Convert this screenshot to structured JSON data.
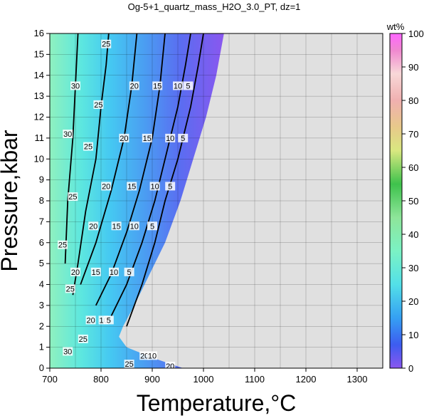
{
  "chart_data": {
    "type": "heatmap",
    "title": "Og-5+1_quartz_mass_H2O_3.0_PT, dz=1",
    "xlabel": "Temperature,°C",
    "ylabel": "Pressure,kbar",
    "xlim": [
      700,
      1350
    ],
    "ylim": [
      0,
      16
    ],
    "x_ticks": [
      "700",
      "800",
      "900",
      "1000",
      "1100",
      "1200",
      "1300"
    ],
    "y_ticks": [
      "0",
      "1",
      "2",
      "3",
      "4",
      "5",
      "6",
      "7",
      "8",
      "9",
      "10",
      "11",
      "12",
      "13",
      "14",
      "15",
      "16"
    ],
    "grid": true,
    "no_data_color": "#e0e0e0",
    "colorbar": {
      "label": "wt%",
      "range": [
        0,
        100
      ],
      "ticks": [
        "0",
        "10",
        "20",
        "30",
        "40",
        "50",
        "60",
        "70",
        "80",
        "90",
        "100"
      ]
    },
    "filled_region_right_edge": [
      {
        "p": 0,
        "t": 960
      },
      {
        "p": 0.5,
        "t": 900
      },
      {
        "p": 1,
        "t": 850
      },
      {
        "p": 1.5,
        "t": 835
      },
      {
        "p": 2,
        "t": 843
      },
      {
        "p": 3,
        "t": 865
      },
      {
        "p": 4,
        "t": 885
      },
      {
        "p": 5,
        "t": 905
      },
      {
        "p": 6,
        "t": 925
      },
      {
        "p": 8,
        "t": 955
      },
      {
        "p": 10,
        "t": 980
      },
      {
        "p": 12,
        "t": 1005
      },
      {
        "p": 14,
        "t": 1025
      },
      {
        "p": 16,
        "t": 1040
      }
    ],
    "contours": [
      {
        "level": 5,
        "points": [
          [
            850,
            2.0
          ],
          [
            880,
            4.0
          ],
          [
            905,
            6.0
          ],
          [
            925,
            8.0
          ],
          [
            950,
            10.0
          ],
          [
            975,
            12.5
          ],
          [
            990,
            14.5
          ],
          [
            1000,
            16.0
          ]
        ]
      },
      {
        "level": 10,
        "points": [
          [
            820,
            2.5
          ],
          [
            850,
            4.0
          ],
          [
            880,
            6.0
          ],
          [
            905,
            8.0
          ],
          [
            925,
            10.0
          ],
          [
            950,
            12.5
          ],
          [
            965,
            14.5
          ],
          [
            975,
            16.0
          ]
        ]
      },
      {
        "level": 15,
        "points": [
          [
            790,
            3.0
          ],
          [
            820,
            4.5
          ],
          [
            850,
            6.5
          ],
          [
            875,
            8.5
          ],
          [
            900,
            11.0
          ],
          [
            915,
            13.5
          ],
          [
            925,
            16.0
          ]
        ]
      },
      {
        "level": 20,
        "points": [
          [
            760,
            4.0
          ],
          [
            790,
            6.0
          ],
          [
            820,
            8.5
          ],
          [
            845,
            11.0
          ],
          [
            860,
            13.5
          ],
          [
            870,
            16.0
          ]
        ]
      },
      {
        "level": 25,
        "points": [
          [
            745,
            3.5
          ],
          [
            755,
            5.0
          ],
          [
            770,
            7.5
          ],
          [
            790,
            10.0
          ],
          [
            800,
            12.5
          ],
          [
            810,
            14.5
          ],
          [
            815,
            16.0
          ]
        ]
      },
      {
        "level": 30,
        "points": [
          [
            730,
            5.0
          ],
          [
            735,
            8.0
          ],
          [
            745,
            11.0
          ],
          [
            750,
            13.5
          ],
          [
            755,
            16.0
          ]
        ]
      }
    ],
    "contour_labels": [
      {
        "level": "25",
        "t": 810,
        "p": 15.5
      },
      {
        "level": "20",
        "t": 865,
        "p": 13.5
      },
      {
        "level": "15",
        "t": 910,
        "p": 13.5
      },
      {
        "level": "10",
        "t": 950,
        "p": 13.5
      },
      {
        "level": "5",
        "t": 970,
        "p": 13.5
      },
      {
        "level": "30",
        "t": 750,
        "p": 13.5
      },
      {
        "level": "25",
        "t": 795,
        "p": 12.6
      },
      {
        "level": "20",
        "t": 845,
        "p": 11.0
      },
      {
        "level": "15",
        "t": 890,
        "p": 11.0
      },
      {
        "level": "10",
        "t": 935,
        "p": 11.0
      },
      {
        "level": "5",
        "t": 960,
        "p": 11.0
      },
      {
        "level": "30",
        "t": 735,
        "p": 11.2
      },
      {
        "level": "25",
        "t": 775,
        "p": 10.6
      },
      {
        "level": "20",
        "t": 810,
        "p": 8.7
      },
      {
        "level": "15",
        "t": 860,
        "p": 8.7
      },
      {
        "level": "10",
        "t": 905,
        "p": 8.7
      },
      {
        "level": "5",
        "t": 935,
        "p": 8.7
      },
      {
        "level": "25",
        "t": 745,
        "p": 8.2
      },
      {
        "level": "20",
        "t": 785,
        "p": 6.8
      },
      {
        "level": "15",
        "t": 830,
        "p": 6.8
      },
      {
        "level": "10",
        "t": 865,
        "p": 6.8
      },
      {
        "level": "5",
        "t": 900,
        "p": 6.8
      },
      {
        "level": "25",
        "t": 725,
        "p": 5.9
      },
      {
        "level": "20",
        "t": 750,
        "p": 4.6
      },
      {
        "level": "15",
        "t": 790,
        "p": 4.6
      },
      {
        "level": "10",
        "t": 825,
        "p": 4.6
      },
      {
        "level": "5",
        "t": 855,
        "p": 4.6
      },
      {
        "level": "25",
        "t": 740,
        "p": 3.8
      },
      {
        "level": "25",
        "t": 765,
        "p": 1.4
      },
      {
        "level": "20",
        "t": 780,
        "p": 2.3
      },
      {
        "level": "10",
        "t": 805,
        "p": 2.3
      },
      {
        "level": "5",
        "t": 815,
        "p": 2.3
      },
      {
        "level": "30",
        "t": 735,
        "p": 0.8
      },
      {
        "level": "20",
        "t": 885,
        "p": 0.6
      },
      {
        "level": "10",
        "t": 900,
        "p": 0.6
      },
      {
        "level": "25",
        "t": 855,
        "p": 0.2
      },
      {
        "level": "20",
        "t": 935,
        "p": 0.1
      }
    ]
  }
}
